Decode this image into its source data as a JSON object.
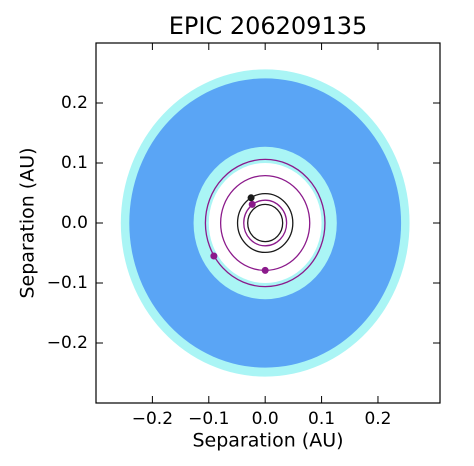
{
  "chart_data": {
    "type": "orbit",
    "title": "EPIC 206209135",
    "xlabel": "Separation (AU)",
    "ylabel": "Separation (AU)",
    "xlim": [
      -0.3,
      0.31
    ],
    "ylim": [
      -0.3,
      0.3
    ],
    "xticks": [
      {
        "value": -0.2,
        "label": "−0.2"
      },
      {
        "value": -0.1,
        "label": "−0.1"
      },
      {
        "value": 0,
        "label": "0.0"
      },
      0.1,
      0.2
    ],
    "yticks": [
      {
        "value": -0.2,
        "label": "−0.2"
      },
      {
        "value": -0.1,
        "label": "−0.1"
      },
      {
        "value": 0,
        "label": "0.0"
      },
      0.1,
      0.2
    ],
    "zones": [
      {
        "color": "#aaf5f5",
        "radius": 0.256
      },
      {
        "color": "#5aa5f5",
        "radius": 0.241
      },
      {
        "color": "#aaf5f5",
        "radius": 0.127
      },
      {
        "color": "#ffffff",
        "radius": 0.1
      }
    ],
    "orbits": [
      {
        "color": "#1a1a1a",
        "radius": 0.031
      },
      {
        "color": "#8b1a8b",
        "radius": 0.038,
        "x": -0.023,
        "y": 0.031
      },
      {
        "color": "#1a1a1a",
        "radius": 0.049,
        "x": -0.025,
        "y": 0.042
      },
      {
        "color": "#8b1a8b",
        "radius": 0.079,
        "x": 0,
        "y": -0.079
      },
      {
        "color": "#8b1a8b",
        "radius": 0.106,
        "x": -0.091,
        "y": -0.055
      }
    ]
  }
}
